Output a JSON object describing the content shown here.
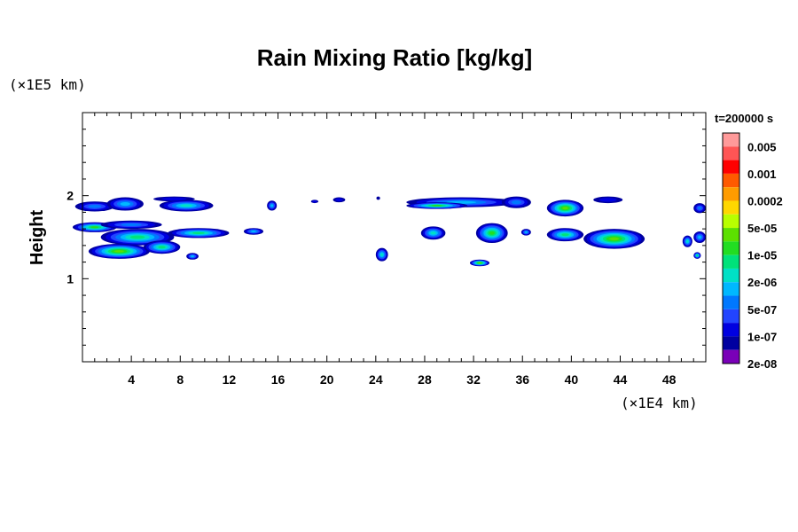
{
  "chart_data": {
    "type": "heatmap",
    "title": "Rain Mixing Ratio [kg/kg]",
    "xlabel": "",
    "ylabel": "Height",
    "x_unit_label": "(×1E4 km)",
    "y_unit_label": "(×1E5 km)",
    "time_label": "t=200000 s",
    "xlim": [
      0,
      51
    ],
    "ylim": [
      0,
      3
    ],
    "x_ticks": [
      4,
      8,
      12,
      16,
      20,
      24,
      28,
      32,
      36,
      40,
      44,
      48
    ],
    "y_ticks": [
      1,
      2
    ],
    "colorbar": {
      "labels": [
        "0.005",
        "0.001",
        "0.0002",
        "5e-05",
        "1e-05",
        "2e-06",
        "5e-07",
        "1e-07",
        "2e-08"
      ],
      "colors": [
        "#ff9a9a",
        "#ff5555",
        "#ff0000",
        "#ff5a00",
        "#ff9c00",
        "#ffd700",
        "#b8ff00",
        "#5ce000",
        "#22dd22",
        "#00e27a",
        "#00e0c6",
        "#00b8ff",
        "#0078ff",
        "#2244ff",
        "#0000e0",
        "#0000a0",
        "#7a00b8"
      ]
    },
    "features": [
      {
        "x": 1.0,
        "y": 1.87,
        "rx": 1.6,
        "ry": 0.06,
        "level": 4
      },
      {
        "x": 3.5,
        "y": 1.9,
        "rx": 1.5,
        "ry": 0.08,
        "level": 5
      },
      {
        "x": 8.5,
        "y": 1.88,
        "rx": 2.2,
        "ry": 0.07,
        "level": 6
      },
      {
        "x": 7.5,
        "y": 1.96,
        "rx": 1.7,
        "ry": 0.03,
        "level": 2
      },
      {
        "x": 1.0,
        "y": 1.62,
        "rx": 1.8,
        "ry": 0.06,
        "level": 8
      },
      {
        "x": 4.0,
        "y": 1.65,
        "rx": 2.5,
        "ry": 0.05,
        "level": 4
      },
      {
        "x": 4.5,
        "y": 1.5,
        "rx": 3.0,
        "ry": 0.1,
        "level": 7
      },
      {
        "x": 9.5,
        "y": 1.55,
        "rx": 2.5,
        "ry": 0.06,
        "level": 7
      },
      {
        "x": 3.0,
        "y": 1.33,
        "rx": 2.5,
        "ry": 0.09,
        "level": 9
      },
      {
        "x": 6.5,
        "y": 1.38,
        "rx": 1.5,
        "ry": 0.08,
        "level": 7
      },
      {
        "x": 9.0,
        "y": 1.27,
        "rx": 0.5,
        "ry": 0.04,
        "level": 5
      },
      {
        "x": 14.0,
        "y": 1.57,
        "rx": 0.8,
        "ry": 0.04,
        "level": 5
      },
      {
        "x": 15.5,
        "y": 1.88,
        "rx": 0.4,
        "ry": 0.06,
        "level": 5
      },
      {
        "x": 19.0,
        "y": 1.93,
        "rx": 0.3,
        "ry": 0.02,
        "level": 2
      },
      {
        "x": 21.0,
        "y": 1.95,
        "rx": 0.5,
        "ry": 0.03,
        "level": 2
      },
      {
        "x": 24.2,
        "y": 1.97,
        "rx": 0.15,
        "ry": 0.02,
        "level": 1
      },
      {
        "x": 24.5,
        "y": 1.29,
        "rx": 0.5,
        "ry": 0.08,
        "level": 6
      },
      {
        "x": 31.0,
        "y": 1.92,
        "rx": 4.5,
        "ry": 0.06,
        "level": 5
      },
      {
        "x": 29.0,
        "y": 1.88,
        "rx": 2.5,
        "ry": 0.04,
        "level": 8
      },
      {
        "x": 35.5,
        "y": 1.92,
        "rx": 1.2,
        "ry": 0.07,
        "level": 4
      },
      {
        "x": 28.7,
        "y": 1.55,
        "rx": 1.0,
        "ry": 0.08,
        "level": 6
      },
      {
        "x": 33.5,
        "y": 1.55,
        "rx": 1.3,
        "ry": 0.12,
        "level": 8
      },
      {
        "x": 32.5,
        "y": 1.19,
        "rx": 0.8,
        "ry": 0.04,
        "level": 9
      },
      {
        "x": 36.3,
        "y": 1.56,
        "rx": 0.4,
        "ry": 0.04,
        "level": 5
      },
      {
        "x": 39.5,
        "y": 1.85,
        "rx": 1.5,
        "ry": 0.1,
        "level": 9
      },
      {
        "x": 39.5,
        "y": 1.53,
        "rx": 1.5,
        "ry": 0.08,
        "level": 7
      },
      {
        "x": 43.5,
        "y": 1.48,
        "rx": 2.5,
        "ry": 0.12,
        "level": 9
      },
      {
        "x": 43.0,
        "y": 1.95,
        "rx": 1.2,
        "ry": 0.04,
        "level": 2
      },
      {
        "x": 49.5,
        "y": 1.45,
        "rx": 0.4,
        "ry": 0.07,
        "level": 6
      },
      {
        "x": 50.5,
        "y": 1.85,
        "rx": 0.5,
        "ry": 0.06,
        "level": 4
      },
      {
        "x": 50.5,
        "y": 1.5,
        "rx": 0.5,
        "ry": 0.07,
        "level": 5
      },
      {
        "x": 50.3,
        "y": 1.28,
        "rx": 0.3,
        "ry": 0.04,
        "level": 7
      }
    ]
  }
}
